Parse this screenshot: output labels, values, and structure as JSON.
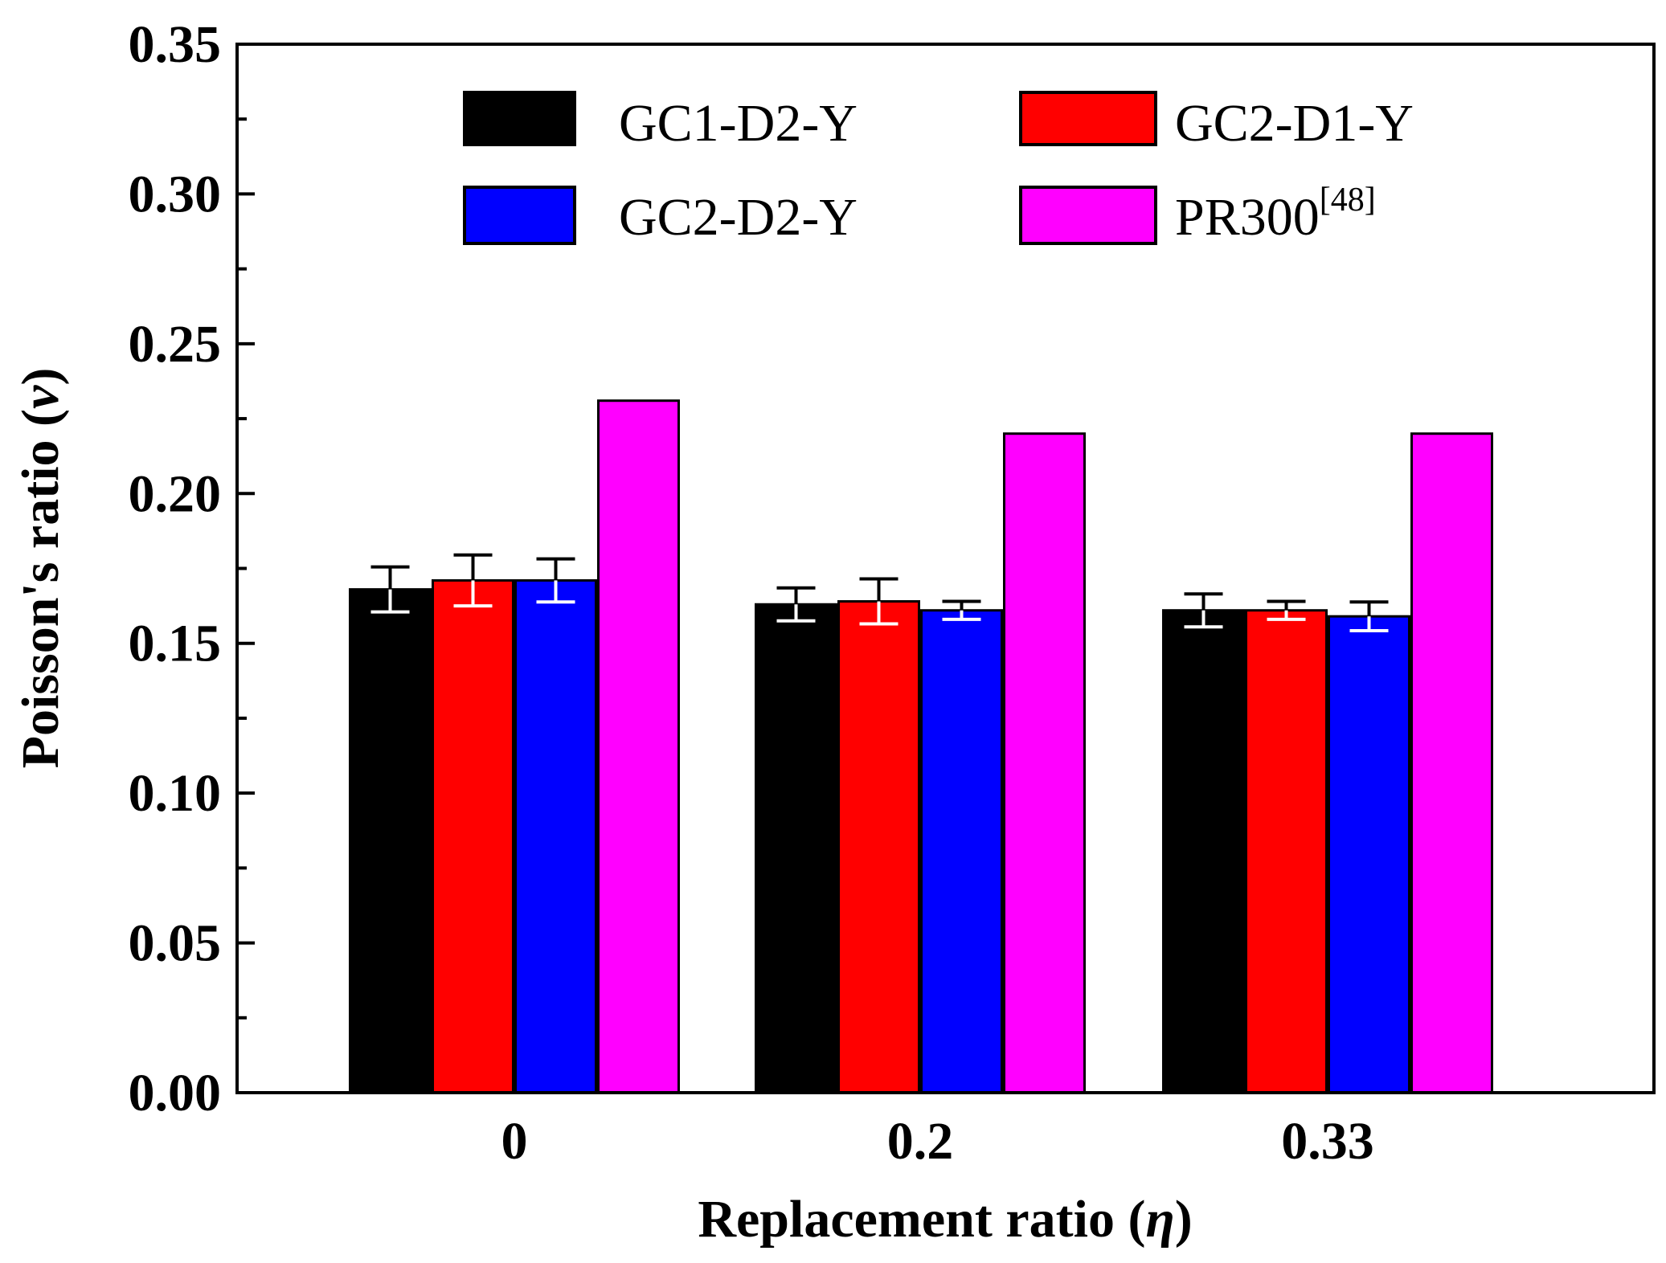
{
  "chart_data": {
    "type": "bar",
    "title": "",
    "xlabel": "Replacement ratio (",
    "xlabel_symbol": "η",
    "xlabel_close": ")",
    "ylabel": "Poisson's ratio (",
    "ylabel_symbol": "ν",
    "ylabel_close": ")",
    "categories": [
      "0",
      "0.2",
      "0.33"
    ],
    "ylim": [
      0,
      0.35
    ],
    "yticks": [
      0.0,
      0.05,
      0.1,
      0.15,
      0.2,
      0.25,
      0.3,
      0.35
    ],
    "ytick_labels": [
      "0.00",
      "0.05",
      "0.10",
      "0.15",
      "0.20",
      "0.25",
      "0.30",
      "0.35"
    ],
    "legend_position": "top-right",
    "series": [
      {
        "name": "GC1-D2-Y",
        "color": "#000000",
        "errorbar_color": "#ffffff",
        "values": [
          0.168,
          0.163,
          0.161
        ],
        "errors": [
          0.0075,
          0.0055,
          0.0055
        ]
      },
      {
        "name": "GC2-D1-Y",
        "color": "#ff0000",
        "errorbar_color": "#ffffff",
        "values": [
          0.171,
          0.164,
          0.161
        ],
        "errors": [
          0.0085,
          0.0075,
          0.003
        ]
      },
      {
        "name": "GC2-D2-Y",
        "color": "#0000ff",
        "errorbar_color": "#ffffff",
        "values": [
          0.171,
          0.161,
          0.159
        ],
        "errors": [
          0.0072,
          0.003,
          0.0048
        ]
      },
      {
        "name": "PR300",
        "name_sup": "[48]",
        "color": "#ff00ff",
        "values": [
          0.231,
          0.22,
          0.22
        ],
        "errors": null
      }
    ]
  }
}
